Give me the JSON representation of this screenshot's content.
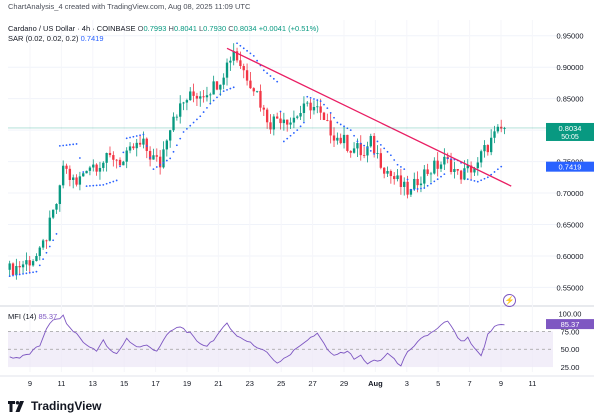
{
  "header": {
    "credit": "ChartAnalysis_4 created with TradingView.com, Aug 08, 2025 11:09 UTC",
    "symbol": "Cardano / US Dollar · 4h · COINBASE",
    "o_label": "O",
    "o_value": "0.7993",
    "h_label": "H",
    "h_value": "0.8041",
    "l_label": "L",
    "l_value": "0.7930",
    "c_label": "C",
    "c_value": "0.8034",
    "change": "+0.0041 (+0.51%)",
    "sar_label": "SAR (0.02, 0.02, 0.2)",
    "sar_value": "0.7419"
  },
  "mfi": {
    "label": "MFI (14)",
    "value": "85.37"
  },
  "footer": {
    "brand": "TradingView"
  },
  "colors": {
    "up": "#089981",
    "down": "#f23645",
    "sar": "#2962ff",
    "trendline": "#e91e63",
    "mfi": "#7e57c2",
    "mfi_band": "#ede7f6"
  },
  "chart_data": [
    {
      "type": "candlestick",
      "ylim": [
        0.53,
        0.975
      ],
      "yticks": [
        "0.95000",
        "0.90000",
        "0.85000",
        "0.80000",
        "0.75000",
        "0.70000",
        "0.65000",
        "0.60000",
        "0.55000"
      ],
      "ytick_values": [
        0.95,
        0.9,
        0.85,
        0.8,
        0.75,
        0.7,
        0.65,
        0.6,
        0.55
      ],
      "xticks": [
        "9",
        "11",
        "13",
        "15",
        "17",
        "19",
        "21",
        "23",
        "25",
        "27",
        "29",
        "Aug",
        "3",
        "5",
        "7",
        "9",
        "11"
      ],
      "price_labels": [
        {
          "value": 0.8034,
          "text": "0.8034",
          "sub": "50:05",
          "kind": "close"
        },
        {
          "value": 0.7419,
          "text": "0.7419",
          "kind": "sar"
        }
      ],
      "close_path": [
        [
          0,
          0.578
        ],
        [
          3,
          0.585
        ],
        [
          6,
          0.593
        ],
        [
          9,
          0.602
        ],
        [
          11,
          0.632
        ],
        [
          13,
          0.666
        ],
        [
          15,
          0.702
        ],
        [
          16,
          0.745
        ],
        [
          18,
          0.725
        ],
        [
          20,
          0.712
        ],
        [
          23,
          0.744
        ],
        [
          26,
          0.746
        ],
        [
          29,
          0.752
        ],
        [
          31,
          0.758
        ],
        [
          34,
          0.748
        ],
        [
          37,
          0.772
        ],
        [
          40,
          0.776
        ],
        [
          42,
          0.76
        ],
        [
          45,
          0.746
        ],
        [
          47,
          0.792
        ],
        [
          49,
          0.826
        ],
        [
          51,
          0.835
        ],
        [
          53,
          0.85
        ],
        [
          55,
          0.855
        ],
        [
          58,
          0.86
        ],
        [
          61,
          0.87
        ],
        [
          63,
          0.882
        ],
        [
          65,
          0.905
        ],
        [
          67,
          0.928
        ],
        [
          68,
          0.915
        ],
        [
          70,
          0.895
        ],
        [
          72,
          0.878
        ],
        [
          74,
          0.86
        ],
        [
          76,
          0.828
        ],
        [
          78,
          0.812
        ],
        [
          80,
          0.82
        ],
        [
          82,
          0.822
        ],
        [
          84,
          0.815
        ],
        [
          86,
          0.825
        ],
        [
          88,
          0.832
        ],
        [
          90,
          0.84
        ],
        [
          92,
          0.832
        ],
        [
          94,
          0.81
        ],
        [
          96,
          0.8
        ],
        [
          98,
          0.788
        ],
        [
          100,
          0.782
        ],
        [
          102,
          0.772
        ],
        [
          104,
          0.77
        ],
        [
          106,
          0.758
        ],
        [
          108,
          0.78
        ],
        [
          110,
          0.76
        ],
        [
          112,
          0.742
        ],
        [
          114,
          0.728
        ],
        [
          116,
          0.718
        ],
        [
          118,
          0.706
        ],
        [
          120,
          0.7
        ],
        [
          122,
          0.722
        ],
        [
          124,
          0.732
        ],
        [
          126,
          0.738
        ],
        [
          128,
          0.744
        ],
        [
          130,
          0.75
        ],
        [
          132,
          0.745
        ],
        [
          134,
          0.728
        ],
        [
          136,
          0.732
        ],
        [
          138,
          0.74
        ],
        [
          140,
          0.742
        ],
        [
          141,
          0.76
        ],
        [
          143,
          0.775
        ],
        [
          145,
          0.79
        ],
        [
          147,
          0.8
        ],
        [
          148,
          0.803
        ]
      ],
      "sar_path": [
        [
          0,
          0.568
        ],
        [
          8,
          0.575
        ],
        [
          14,
          0.635
        ],
        [
          15,
          0.775
        ],
        [
          20,
          0.778
        ],
        [
          23,
          0.711
        ],
        [
          28,
          0.713
        ],
        [
          32,
          0.72
        ],
        [
          35,
          0.787
        ],
        [
          40,
          0.793
        ],
        [
          43,
          0.738
        ],
        [
          48,
          0.755
        ],
        [
          52,
          0.797
        ],
        [
          57,
          0.822
        ],
        [
          60,
          0.842
        ],
        [
          64,
          0.862
        ],
        [
          67,
          0.868
        ],
        [
          68,
          0.938
        ],
        [
          73,
          0.918
        ],
        [
          76,
          0.895
        ],
        [
          80,
          0.877
        ],
        [
          82,
          0.782
        ],
        [
          86,
          0.8
        ],
        [
          88,
          0.812
        ],
        [
          89,
          0.853
        ],
        [
          93,
          0.846
        ],
        [
          95,
          0.835
        ],
        [
          98,
          0.812
        ],
        [
          102,
          0.8
        ],
        [
          104,
          0.782
        ],
        [
          107,
          0.772
        ],
        [
          109,
          0.762
        ],
        [
          110,
          0.782
        ],
        [
          114,
          0.76
        ],
        [
          116,
          0.745
        ],
        [
          118,
          0.738
        ],
        [
          120,
          0.705
        ],
        [
          124,
          0.708
        ],
        [
          128,
          0.722
        ],
        [
          130,
          0.73
        ],
        [
          131,
          0.755
        ],
        [
          134,
          0.752
        ],
        [
          135,
          0.748
        ],
        [
          137,
          0.722
        ],
        [
          140,
          0.718
        ],
        [
          143,
          0.725
        ],
        [
          147,
          0.742
        ]
      ],
      "trendline": {
        "from": [
          65,
          0.93
        ],
        "to": [
          150,
          0.711
        ]
      }
    },
    {
      "type": "line",
      "name": "MFI (14)",
      "ylim": [
        18,
        108
      ],
      "yticks": [
        "100.00",
        "75.00",
        "50.00",
        "25.00"
      ],
      "ytick_values": [
        100,
        75,
        50,
        25
      ],
      "band": [
        25,
        75
      ],
      "dashed_levels": [
        75,
        50
      ],
      "last_value": 85.37,
      "path": [
        [
          0,
          39
        ],
        [
          3,
          38
        ],
        [
          6,
          44
        ],
        [
          9,
          55
        ],
        [
          11,
          80
        ],
        [
          13,
          90
        ],
        [
          16,
          96
        ],
        [
          18,
          79
        ],
        [
          20,
          72
        ],
        [
          23,
          55
        ],
        [
          26,
          49
        ],
        [
          28,
          62
        ],
        [
          30,
          48
        ],
        [
          32,
          43
        ],
        [
          35,
          65
        ],
        [
          38,
          53
        ],
        [
          41,
          55
        ],
        [
          44,
          48
        ],
        [
          46,
          62
        ],
        [
          48,
          75
        ],
        [
          51,
          82
        ],
        [
          54,
          72
        ],
        [
          56,
          60
        ],
        [
          59,
          55
        ],
        [
          61,
          64
        ],
        [
          63,
          74
        ],
        [
          65,
          87
        ],
        [
          68,
          68
        ],
        [
          70,
          64
        ],
        [
          72,
          60
        ],
        [
          74,
          52
        ],
        [
          76,
          49
        ],
        [
          78,
          40
        ],
        [
          80,
          31
        ],
        [
          82,
          38
        ],
        [
          84,
          43
        ],
        [
          86,
          52
        ],
        [
          88,
          60
        ],
        [
          90,
          66
        ],
        [
          92,
          71
        ],
        [
          94,
          58
        ],
        [
          96,
          43
        ],
        [
          99,
          44
        ],
        [
          101,
          48
        ],
        [
          103,
          36
        ],
        [
          105,
          41
        ],
        [
          107,
          30
        ],
        [
          109,
          33
        ],
        [
          111,
          34
        ],
        [
          113,
          45
        ],
        [
          115,
          35
        ],
        [
          117,
          28
        ],
        [
          119,
          45
        ],
        [
          121,
          53
        ],
        [
          123,
          66
        ],
        [
          125,
          70
        ],
        [
          127,
          75
        ],
        [
          129,
          83
        ],
        [
          131,
          90
        ],
        [
          133,
          74
        ],
        [
          135,
          60
        ],
        [
          137,
          65
        ],
        [
          139,
          50
        ],
        [
          141,
          40
        ],
        [
          143,
          70
        ],
        [
          145,
          82
        ],
        [
          147,
          86
        ],
        [
          148,
          85.4
        ]
      ]
    }
  ]
}
